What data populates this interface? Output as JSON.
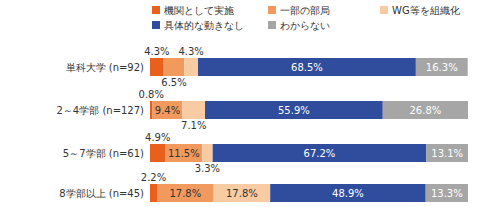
{
  "chart_data": {
    "type": "bar",
    "orientation": "horizontal",
    "stacked": true,
    "data_labels": true,
    "tick_labels": "y",
    "grid": false,
    "legend": "top",
    "xlim": [
      0,
      100
    ],
    "categories": [
      "単科大学 (n=92)",
      "2～4学部 (n=127)",
      "5～7学部 (n=61)",
      "8学部以上 (n=45)"
    ],
    "series": [
      {
        "name": "機関として実施",
        "color": "#e8601c",
        "values": [
          4.3,
          0.8,
          4.9,
          2.2
        ],
        "value_labels": [
          "4.3%",
          "0.8%",
          "4.9%",
          "2.2%"
        ]
      },
      {
        "name": "一部の部局",
        "color": "#f29a5e",
        "values": [
          6.5,
          9.4,
          11.5,
          17.8
        ],
        "value_labels": [
          "6.5%",
          "9.4%",
          "11.5%",
          "17.8%"
        ]
      },
      {
        "name": "WG等を組織化",
        "color": "#f9cba2",
        "values": [
          4.3,
          7.1,
          3.3,
          17.8
        ],
        "value_labels": [
          "4.3%",
          "7.1%",
          "3.3%",
          "17.8%"
        ]
      },
      {
        "name": "具体的な動きなし",
        "color": "#2f4d9c",
        "values": [
          68.5,
          55.9,
          67.2,
          48.9
        ],
        "value_labels": [
          "68.5%",
          "55.9%",
          "67.2%",
          "48.9%"
        ]
      },
      {
        "name": "わからない",
        "color": "#a6a6a6",
        "values": [
          16.3,
          26.8,
          13.1,
          13.3
        ],
        "value_labels": [
          "16.3%",
          "26.8%",
          "13.1%",
          "13.3%"
        ]
      }
    ]
  }
}
